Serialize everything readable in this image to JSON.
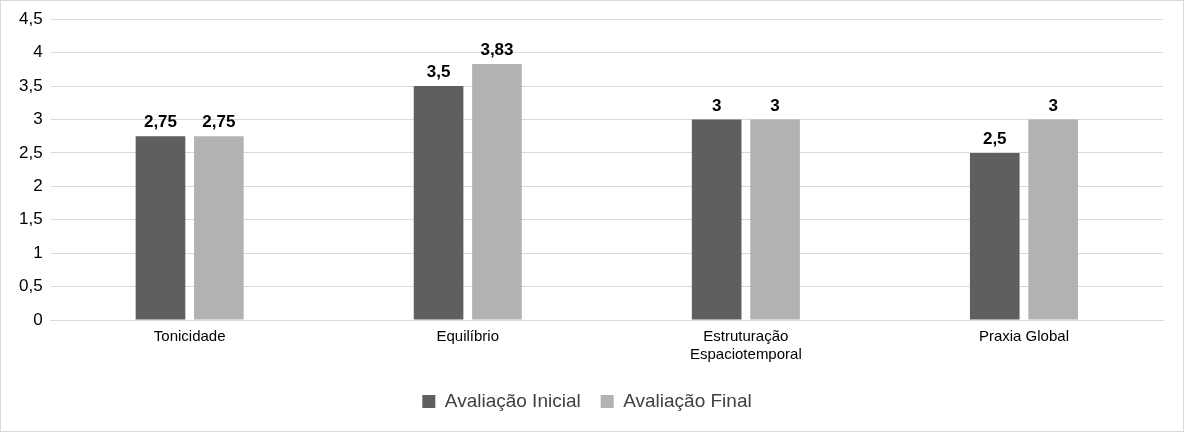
{
  "chart_data": {
    "type": "bar",
    "categories": [
      "Tonicidade",
      "Equilíbrio",
      "Estruturação Espaciotemporal",
      "Praxia Global"
    ],
    "series": [
      {
        "name": "Avaliação Inicial",
        "color": "#5f5f5f",
        "values": [
          2.75,
          3.5,
          3,
          2.5
        ],
        "value_labels": [
          "2,75",
          "3,5",
          "3",
          "2,5"
        ]
      },
      {
        "name": "Avaliação Final",
        "color": "#b2b2b2",
        "values": [
          2.75,
          3.83,
          3,
          3
        ],
        "value_labels": [
          "2,75",
          "3,83",
          "3",
          "3"
        ]
      }
    ],
    "ylim": [
      0,
      4.5
    ],
    "yticks": [
      0,
      {
        "value": 0.5,
        "label": "0,5"
      },
      1,
      {
        "value": 1.5,
        "label": "1,5"
      },
      2,
      {
        "value": 2.5,
        "label": "2,5"
      },
      3,
      {
        "value": 3.5,
        "label": "3,5"
      },
      4,
      {
        "value": 4.5,
        "label": "4,5"
      }
    ],
    "grid": "y",
    "legend": "bottom"
  }
}
